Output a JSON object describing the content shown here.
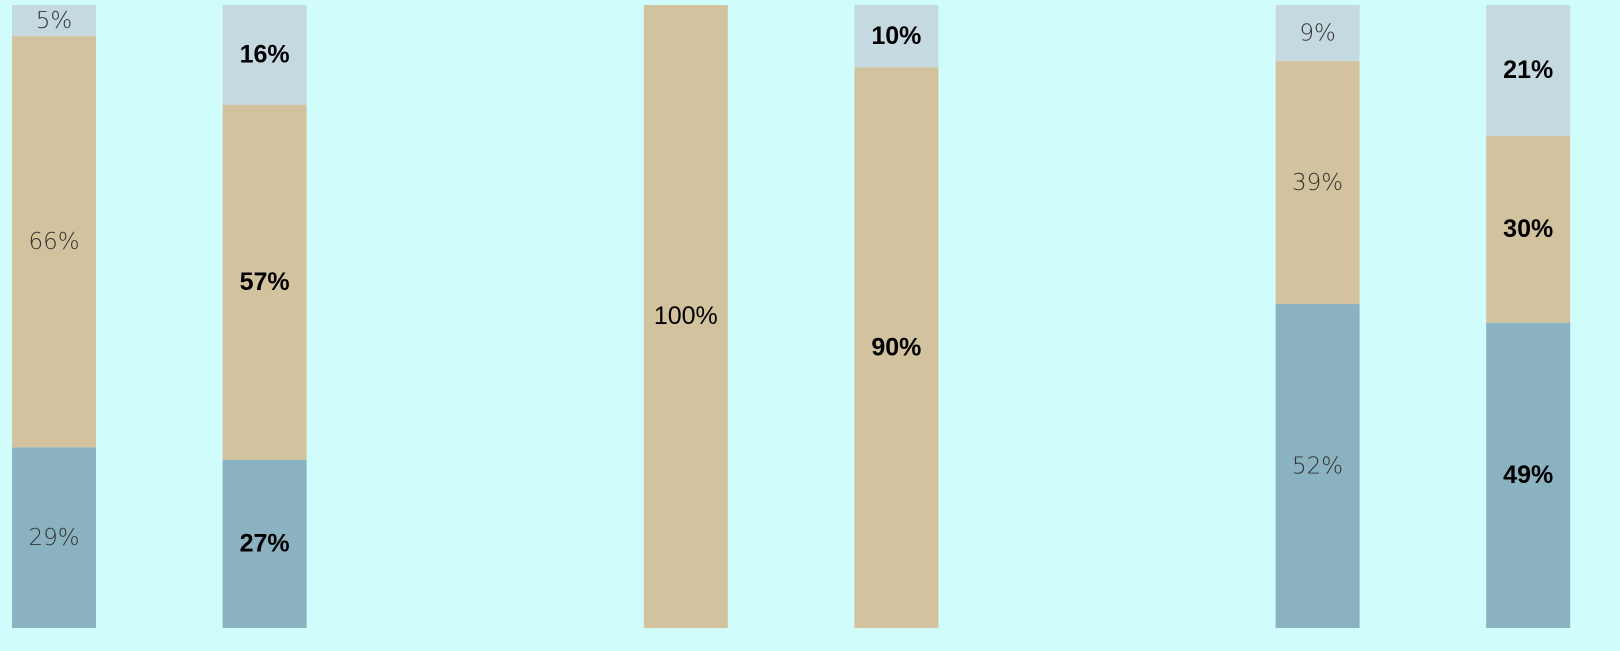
{
  "chart_data": {
    "type": "stacked_bar",
    "categories": [
      null,
      null,
      null,
      null,
      null,
      null,
      null,
      null
    ],
    "ylim": [
      0,
      100
    ],
    "series": [
      {
        "color": "#8ab2c1",
        "values": [
          29,
          27,
          null,
          null,
          null,
          null,
          52,
          49
        ],
        "value_labels": [
          "29%",
          "27%",
          null,
          null,
          null,
          null,
          "52%",
          "49%"
        ]
      },
      {
        "color": "#d2c29d",
        "values": [
          66,
          57,
          null,
          100,
          90,
          null,
          39,
          30
        ],
        "value_labels": [
          "66%",
          "57%",
          null,
          "100%",
          "90%",
          null,
          "39%",
          "30%"
        ]
      },
      {
        "color": "#c5d9e0",
        "values": [
          5,
          16,
          null,
          null,
          10,
          null,
          9,
          21
        ],
        "value_labels": [
          "5%",
          "16%",
          null,
          null,
          "10%",
          null,
          "9%",
          "21%"
        ]
      }
    ]
  }
}
